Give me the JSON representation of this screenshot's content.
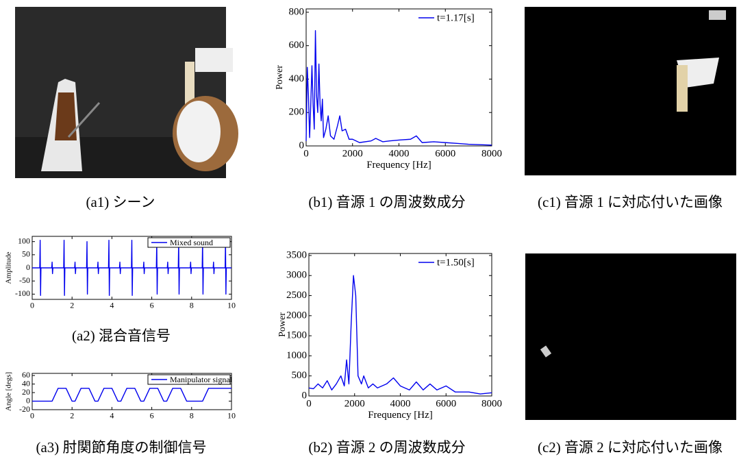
{
  "chart_data": [
    {
      "type": "line",
      "caption": "(b1) 音源 1 の周波数成分",
      "xlabel": "Frequency [Hz]",
      "ylabel": "Power",
      "legend_frame": false,
      "xlim": [
        0,
        8000
      ],
      "xticks": [
        0,
        2000,
        4000,
        6000,
        8000
      ],
      "ylim": [
        0,
        820
      ],
      "yticks": [
        0,
        200,
        400,
        600,
        800
      ],
      "x": [
        0,
        50,
        100,
        150,
        200,
        250,
        300,
        350,
        400,
        450,
        500,
        550,
        600,
        650,
        700,
        750,
        850,
        950,
        1050,
        1200,
        1350,
        1450,
        1550,
        1700,
        1850,
        2000,
        2300,
        2800,
        3000,
        3300,
        3600,
        4000,
        4500,
        4750,
        5000,
        5500,
        6000,
        6500,
        7000,
        8000
      ],
      "series": [
        {
          "name": "t=1.17[s]",
          "color": "#0000ee",
          "values": [
            30,
            470,
            300,
            50,
            250,
            480,
            250,
            100,
            690,
            300,
            200,
            490,
            250,
            150,
            280,
            50,
            100,
            180,
            60,
            40,
            120,
            180,
            90,
            100,
            40,
            40,
            20,
            30,
            45,
            25,
            30,
            35,
            40,
            60,
            20,
            25,
            20,
            15,
            10,
            5
          ]
        }
      ]
    },
    {
      "type": "line",
      "caption": "(a2) 混合音信号",
      "ylabel": "Amplitude",
      "legend_frame": true,
      "xlim": [
        0,
        10
      ],
      "xticks": [
        0,
        2,
        4,
        6,
        8,
        10
      ],
      "ylim": [
        -120,
        120
      ],
      "yticks": [
        -100,
        -50,
        0,
        50,
        100
      ],
      "x": [
        0,
        0.38,
        0.4,
        0.42,
        0.44,
        0.98,
        1.0,
        1.02,
        1.04,
        1.58,
        1.6,
        1.62,
        1.64,
        2.13,
        2.15,
        2.17,
        2.19,
        2.73,
        2.75,
        2.77,
        2.79,
        3.28,
        3.3,
        3.32,
        3.34,
        3.83,
        3.85,
        3.87,
        3.89,
        4.38,
        4.4,
        4.42,
        4.44,
        4.98,
        5.0,
        5.02,
        5.04,
        5.58,
        5.6,
        5.62,
        5.64,
        6.23,
        6.25,
        6.27,
        6.29,
        6.78,
        6.8,
        6.82,
        6.84,
        7.33,
        7.35,
        7.37,
        7.39,
        7.93,
        7.95,
        7.97,
        7.99,
        8.53,
        8.55,
        8.57,
        8.59,
        9.08,
        9.1,
        9.12,
        9.14,
        9.68,
        9.7,
        9.72,
        9.74,
        10
      ],
      "series": [
        {
          "name": "Mixed sound",
          "color": "#0000ee",
          "values": [
            0,
            0,
            105,
            -105,
            0,
            0,
            22,
            -22,
            0,
            0,
            105,
            -105,
            0,
            0,
            22,
            -22,
            0,
            0,
            100,
            -100,
            0,
            0,
            22,
            -22,
            0,
            0,
            105,
            -105,
            0,
            0,
            22,
            -22,
            0,
            0,
            105,
            -105,
            0,
            0,
            22,
            -22,
            0,
            0,
            100,
            -100,
            0,
            0,
            22,
            -22,
            0,
            0,
            100,
            -100,
            0,
            0,
            22,
            -22,
            0,
            0,
            100,
            -100,
            0,
            0,
            22,
            -22,
            0,
            0,
            100,
            -100,
            0,
            0
          ]
        }
      ]
    },
    {
      "type": "line",
      "caption": "(a3) 肘関節角度の制御信号",
      "ylabel": "Angle [degs]",
      "legend_frame": true,
      "xlim": [
        0,
        10
      ],
      "xticks": [
        0,
        2,
        4,
        6,
        8,
        10
      ],
      "ylim": [
        -20,
        65
      ],
      "yticks": [
        -20,
        0,
        20,
        40,
        60
      ],
      "x": [
        0,
        1.0,
        1.3,
        1.7,
        2.0,
        2.15,
        2.45,
        2.85,
        3.15,
        3.3,
        3.6,
        4.0,
        4.3,
        4.45,
        4.75,
        5.15,
        5.45,
        5.6,
        5.9,
        6.3,
        6.6,
        6.75,
        7.05,
        7.45,
        7.75,
        8.55,
        8.85,
        10
      ],
      "series": [
        {
          "name": "Manipulator signal",
          "color": "#0000ee",
          "values": [
            0,
            0,
            30,
            30,
            0,
            0,
            30,
            30,
            0,
            0,
            30,
            30,
            0,
            0,
            30,
            30,
            0,
            0,
            30,
            30,
            0,
            0,
            30,
            30,
            0,
            0,
            30,
            30
          ]
        }
      ]
    },
    {
      "type": "line",
      "caption": "(b2) 音源 2 の周波数成分",
      "xlabel": "Frequency [Hz]",
      "ylabel": "Power",
      "legend_frame": false,
      "xlim": [
        0,
        8000
      ],
      "xticks": [
        0,
        2000,
        4000,
        6000,
        8000
      ],
      "ylim": [
        0,
        3550
      ],
      "yticks": [
        0,
        500,
        1000,
        1500,
        2000,
        2500,
        3000,
        3500
      ],
      "x": [
        0,
        200,
        400,
        600,
        800,
        1000,
        1200,
        1400,
        1550,
        1650,
        1750,
        1850,
        1950,
        2050,
        2150,
        2300,
        2400,
        2600,
        2800,
        3000,
        3400,
        3700,
        4000,
        4400,
        4700,
        5000,
        5300,
        5600,
        6000,
        6400,
        7000,
        7500,
        8000
      ],
      "series": [
        {
          "name": "t=1.50[s]",
          "color": "#0000ee",
          "values": [
            200,
            180,
            300,
            200,
            380,
            150,
            300,
            500,
            250,
            900,
            300,
            1800,
            3000,
            2500,
            500,
            300,
            500,
            200,
            300,
            200,
            300,
            450,
            250,
            150,
            350,
            150,
            300,
            150,
            250,
            100,
            100,
            50,
            80
          ]
        }
      ]
    }
  ],
  "images": [
    {
      "caption": "(a1) シーン"
    },
    {
      "caption": "(c1) 音源 1 に対応付いた画像"
    },
    {
      "caption": "(c2) 音源 2 に対応付いた画像"
    }
  ]
}
